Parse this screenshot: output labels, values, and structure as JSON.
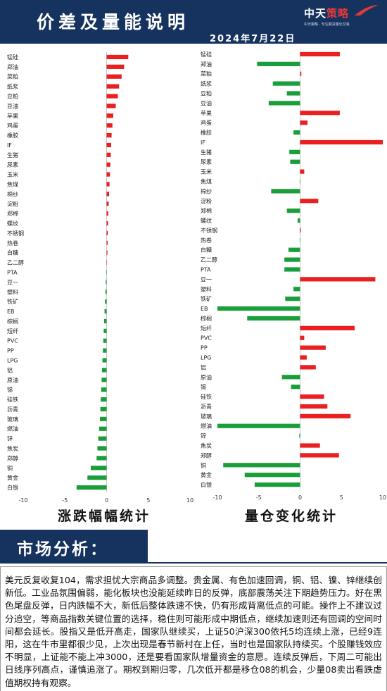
{
  "header": {
    "title": "价差及量能说明",
    "date": "2024年7月22日",
    "logo_text_a": "中天",
    "logo_text_b": "策略",
    "logo_slogan": "中天策略 · 专注期货量化交易"
  },
  "chart_titles": {
    "left": "涨跌幅幅统计",
    "right": "量仓变化统计"
  },
  "section": {
    "label": "市场分析："
  },
  "analysis": {
    "text": "美元反复收复104，需求担忧大宗商品多调整。贵金属、有色加速回调，铜、铝、镍、锌继续创新低。工业品氛围偏弱，能化板块也没能延续昨日的反弹，底部震荡关注下期趋势压力。好在黑色尾盘反弹，日内跌幅不大，新低后整体跌速不快，仍有形成背离低点的可能。操作上不建议过分追空，等商品指数关键位置的选择，稳住则可能形成中期低点，继续加速则还有回调的空间时间都会延长。股指又是低开高走，国家队继续买，上证50沪深300依托5均连续上涨，已经9连阳，这在牛市里都很少见，上次出现是春节新村在上任，当时也是国家队持续买。个股赚钱效应不明显，上证能不能上冲3000，还是要看国家队增量资金的意愿。连续反弹后，下周二可能出日线序列高点，谨慎追涨了。期权到期归零，几次低开都是移仓08的机会，少量08卖出看跌虚值期权持有观察。"
  },
  "chart_data": [
    {
      "type": "bar",
      "orientation": "horizontal",
      "title": "涨跌幅幅统计",
      "xlim": [
        -10,
        10
      ],
      "xticks": [
        -10,
        -5,
        0,
        5,
        10
      ],
      "grid": false,
      "colors": {
        "positive": "#e8201f",
        "negative": "#1a9e3a"
      },
      "categories": [
        "锰硅",
        "郑油",
        "菜粕",
        "纸浆",
        "豆粕",
        "豆油",
        "苹果",
        "鸡蛋",
        "橡胶",
        "IF",
        "生猪",
        "尿素",
        "玉米",
        "焦煤",
        "棉纱",
        "淀粉",
        "郑棉",
        "螺纹",
        "不锈钢",
        "热卷",
        "白糖",
        "乙二醇",
        "PTA",
        "豆一",
        "塑料",
        "铁矿",
        "EB",
        "棕榈",
        "短纤",
        "PVC",
        "PP",
        "LPG",
        "铝",
        "原油",
        "锡",
        "硅铁",
        "沥青",
        "玻璃",
        "燃油",
        "锌",
        "焦炭",
        "郑醇",
        "铜",
        "黄金",
        "白银"
      ],
      "values": [
        2.6,
        2.1,
        1.8,
        1.5,
        1.35,
        1.1,
        0.8,
        0.7,
        0.6,
        0.55,
        0.5,
        0.45,
        0.4,
        0.35,
        0.3,
        0.25,
        0.2,
        0.18,
        0.15,
        0.12,
        0.1,
        0.05,
        -0.05,
        -0.1,
        -0.15,
        -0.2,
        -0.25,
        -0.3,
        -0.35,
        -0.4,
        -0.45,
        -0.5,
        -0.55,
        -0.6,
        -0.65,
        -0.7,
        -0.75,
        -0.8,
        -0.9,
        -1.0,
        -1.1,
        -1.2,
        -1.9,
        -2.3,
        -3.6
      ]
    },
    {
      "type": "bar",
      "orientation": "horizontal",
      "title": "量仓变化统计",
      "xlim": [
        -10,
        10
      ],
      "xticks": [
        -10,
        -5,
        0,
        5,
        10
      ],
      "grid": false,
      "colors": {
        "positive": "#e8201f",
        "negative": "#1a9e3a"
      },
      "categories": [
        "锰硅",
        "郑油",
        "菜粕",
        "纸浆",
        "豆粕",
        "豆油",
        "苹果",
        "鸡蛋",
        "橡胶",
        "IF",
        "生猪",
        "尿素",
        "玉米",
        "焦煤",
        "棉纱",
        "淀粉",
        "郑棉",
        "螺纹",
        "不锈钢",
        "热卷",
        "白糖",
        "乙二醇",
        "PTA",
        "豆一",
        "塑料",
        "铁矿",
        "EB",
        "棕榈",
        "短纤",
        "PVC",
        "PP",
        "LPG",
        "铝",
        "原油",
        "锡",
        "硅铁",
        "沥青",
        "玻璃",
        "燃油",
        "锌",
        "焦炭",
        "郑醇",
        "铜",
        "黄金",
        "白银"
      ],
      "values": [
        4.8,
        -5.2,
        0.15,
        -3.3,
        -1.6,
        -3.8,
        4.8,
        0.9,
        -0.8,
        10.0,
        -1.3,
        -1.2,
        0.5,
        -0.05,
        -3.5,
        2.2,
        -1.6,
        -0.3,
        0.1,
        -0.05,
        -1.4,
        -1.9,
        -1.9,
        9.1,
        -0.8,
        -1.8,
        -10.0,
        -6.4,
        6.6,
        0.5,
        3.1,
        0.8,
        1.9,
        -2.2,
        -1.1,
        2.9,
        3.3,
        6.1,
        -10.0,
        -0.1,
        2.4,
        4.7,
        -9.3,
        -6.7,
        -5.5
      ]
    }
  ]
}
